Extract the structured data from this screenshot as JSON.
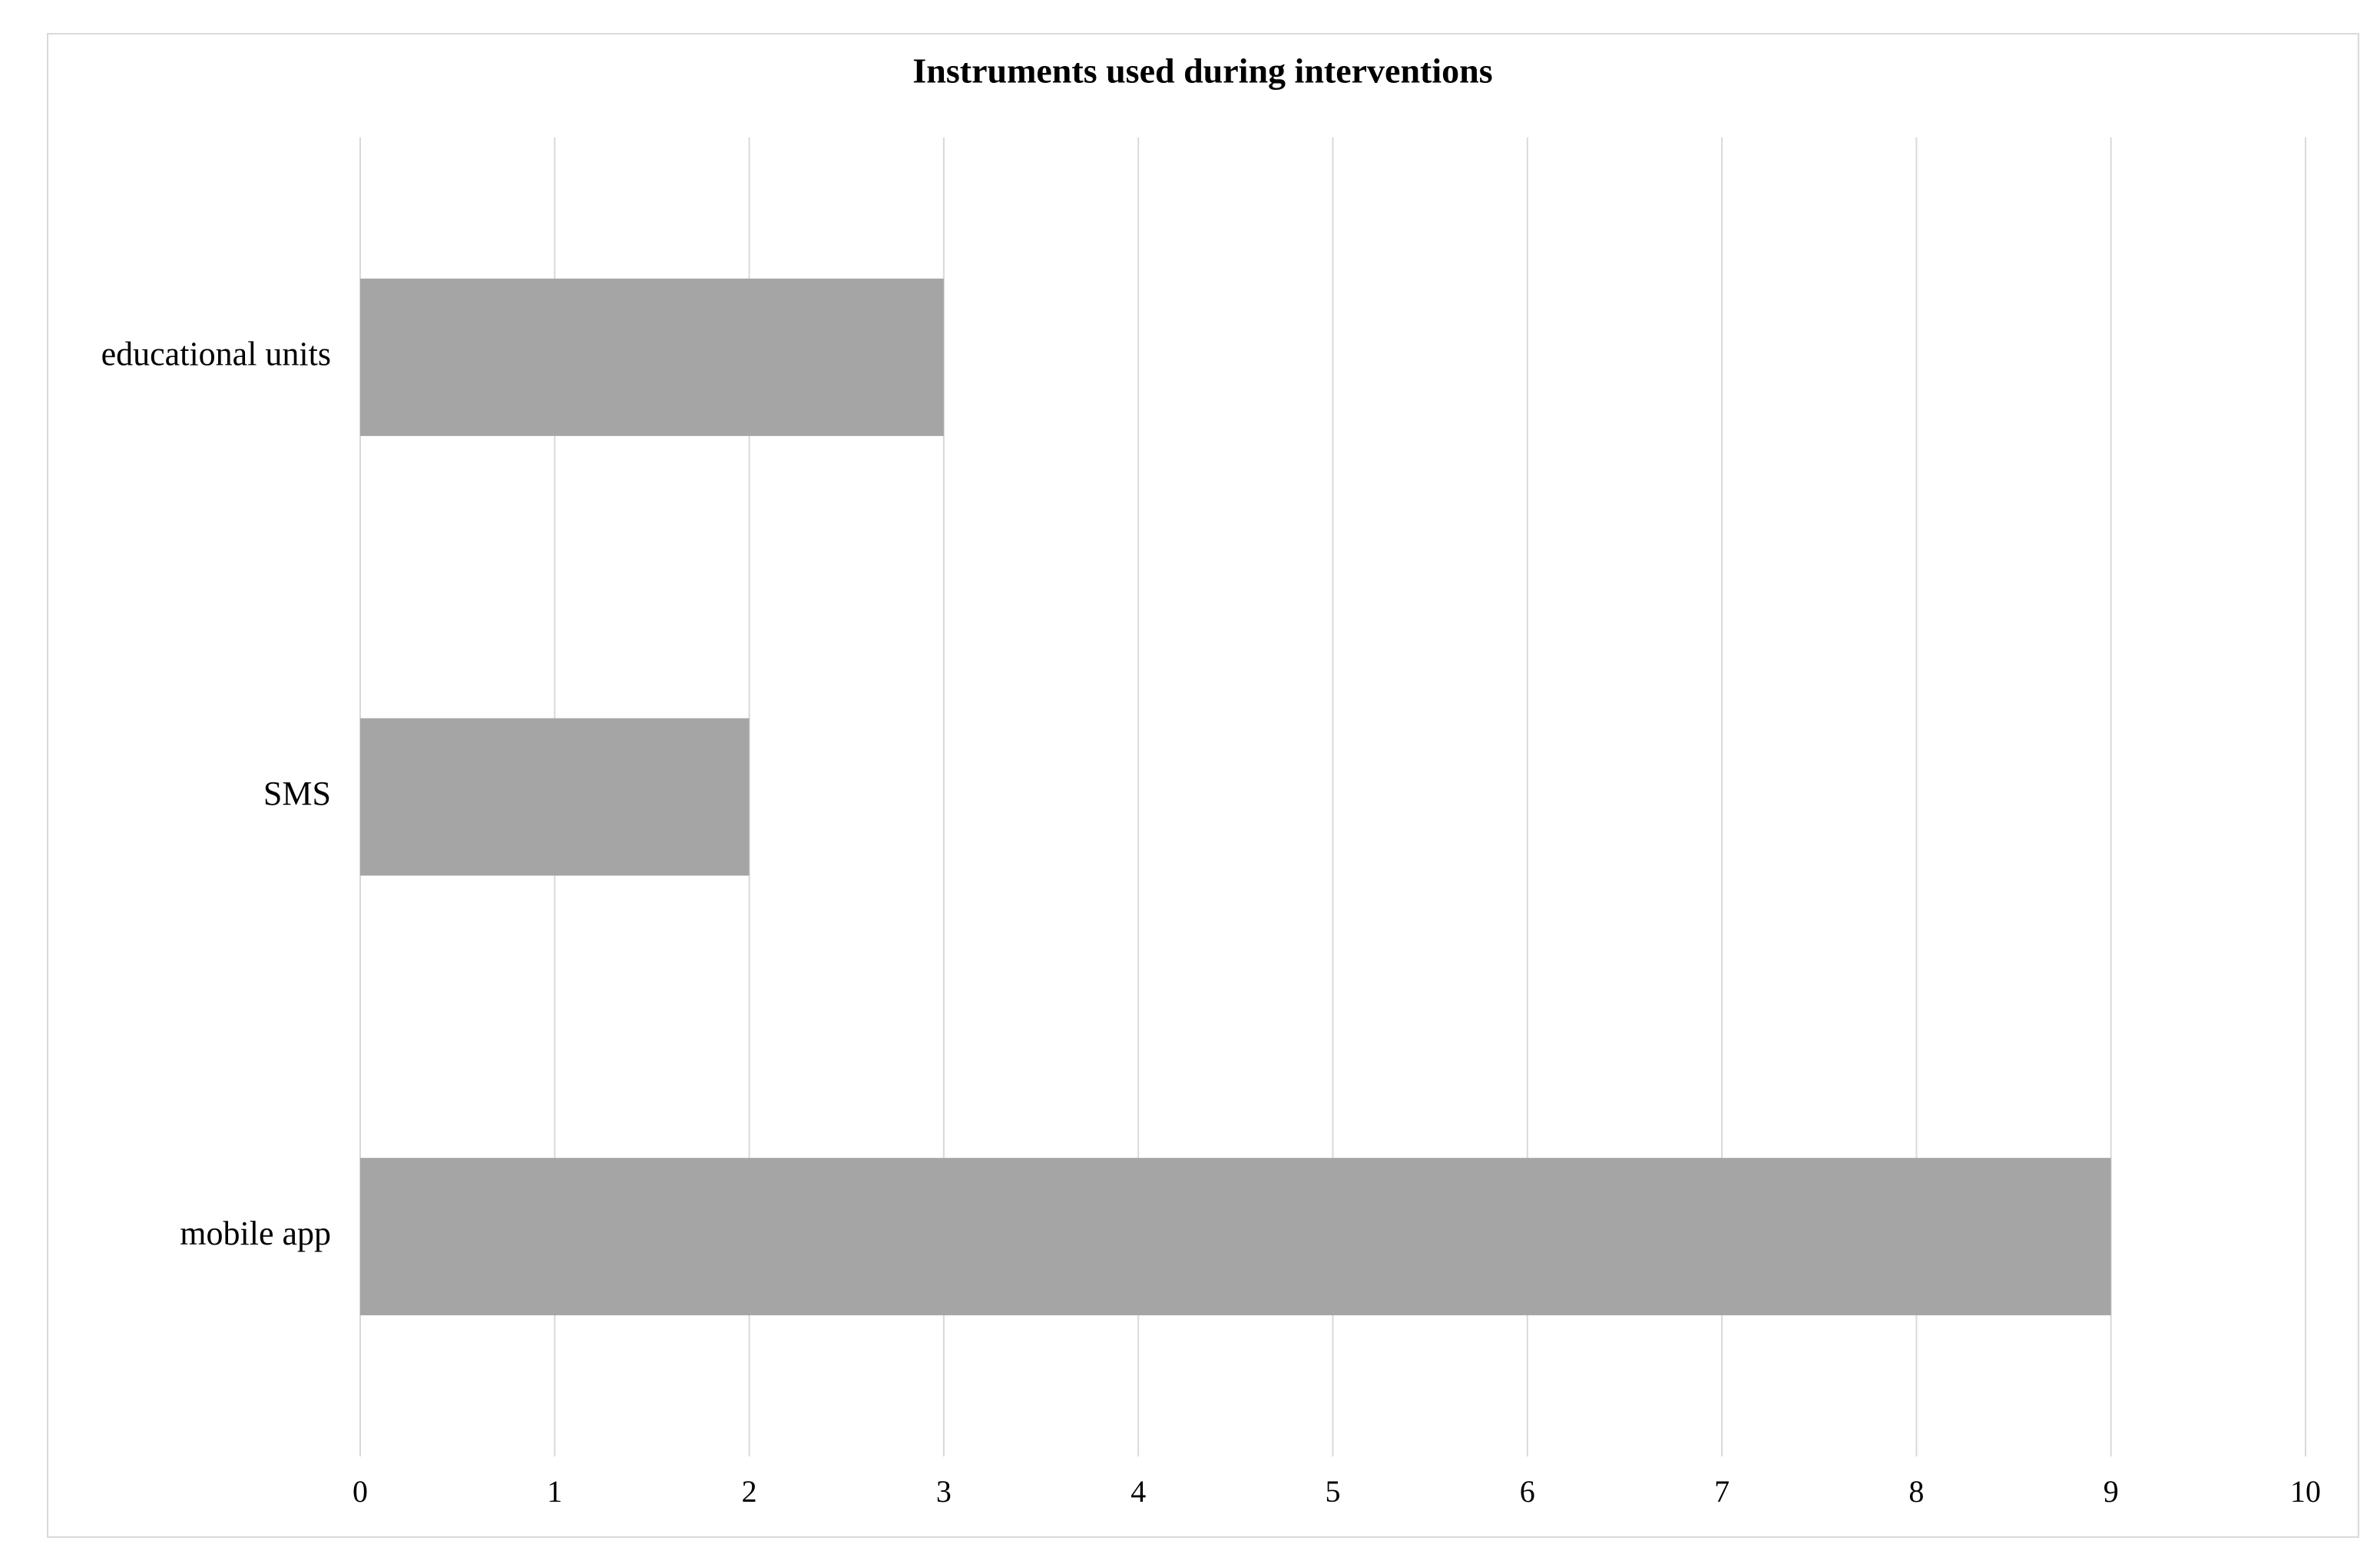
{
  "chart_data": {
    "type": "bar",
    "orientation": "horizontal",
    "title": "Instruments used during interventions",
    "categories": [
      "educational units",
      "SMS",
      "mobile app"
    ],
    "values": [
      3,
      2,
      9
    ],
    "color": "#a5a5a5",
    "xlim": [
      0,
      10
    ],
    "xticks": [
      0,
      1,
      2,
      3,
      4,
      5,
      6,
      7,
      8,
      9,
      10
    ],
    "grid": true
  }
}
